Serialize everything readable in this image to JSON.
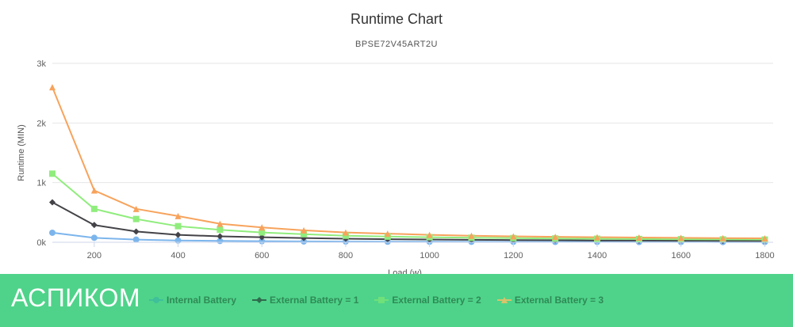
{
  "chart_data": {
    "type": "line",
    "title": "Runtime Chart",
    "subtitle": "BPSE72V45ART2U",
    "xlabel": "Load (w)",
    "ylabel": "Runtime (MIN)",
    "xlim": [
      100,
      1820
    ],
    "ylim": [
      0,
      3000
    ],
    "x_ticks": [
      200,
      400,
      600,
      800,
      1000,
      1200,
      1400,
      1600,
      1800
    ],
    "y_ticks": [
      0,
      1000,
      2000,
      3000
    ],
    "y_tick_labels": [
      "0k",
      "1k",
      "2k",
      "3k"
    ],
    "grid": "horizontal",
    "legend_position": "bottom",
    "x": [
      100,
      200,
      300,
      400,
      500,
      600,
      700,
      800,
      900,
      1000,
      1100,
      1200,
      1300,
      1400,
      1500,
      1600,
      1700,
      1800
    ],
    "series": [
      {
        "name": "Internal Battery",
        "color": "#7cb5ec",
        "marker": "circle",
        "values": [
          160,
          75,
          45,
          30,
          22,
          18,
          14,
          12,
          10,
          9,
          8,
          7,
          6,
          6,
          5,
          5,
          4,
          4
        ]
      },
      {
        "name": "External Battery = 1",
        "color": "#434348",
        "marker": "diamond",
        "values": [
          670,
          290,
          180,
          125,
          100,
          85,
          72,
          60,
          52,
          46,
          41,
          37,
          34,
          31,
          29,
          27,
          25,
          23
        ]
      },
      {
        "name": "External Battery = 2",
        "color": "#90ed7d",
        "marker": "square",
        "values": [
          1150,
          560,
          390,
          270,
          210,
          165,
          135,
          110,
          95,
          85,
          76,
          70,
          64,
          59,
          55,
          51,
          48,
          45
        ]
      },
      {
        "name": "External Battery = 3",
        "color": "#f7a35c",
        "marker": "triangle",
        "values": [
          2600,
          870,
          560,
          440,
          310,
          250,
          200,
          165,
          145,
          125,
          110,
          100,
          92,
          85,
          79,
          74,
          70,
          66
        ]
      }
    ]
  },
  "legend": {
    "items": [
      {
        "label": "Internal Battery",
        "color": "#3fbf9a",
        "marker": "circle"
      },
      {
        "label": "External Battery = 1",
        "color": "#2f6b4c",
        "marker": "diamond"
      },
      {
        "label": "External Battery = 2",
        "color": "#6fe07a",
        "marker": "square"
      },
      {
        "label": "External Battery = 3",
        "color": "#d9c36a",
        "marker": "triangle"
      }
    ]
  },
  "brand": {
    "name": "АСПИКОМ"
  }
}
